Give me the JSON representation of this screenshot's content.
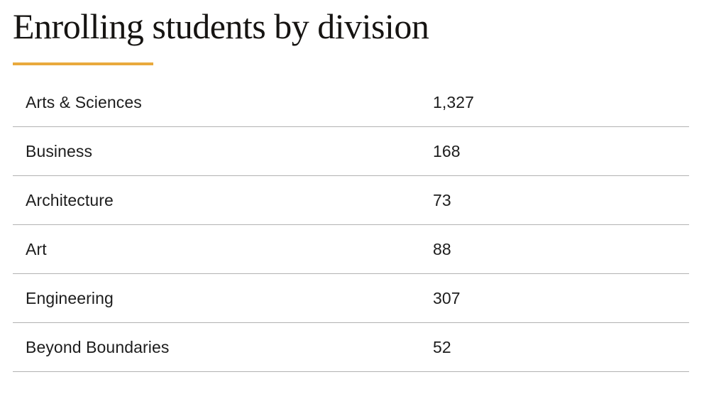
{
  "page": {
    "title": "Enrolling students by division",
    "accent_color": "#E9A93D",
    "divider_color": "#B2B2B2"
  },
  "table": {
    "rows": [
      {
        "label": "Arts & Sciences",
        "value": "1,327"
      },
      {
        "label": "Business",
        "value": "168"
      },
      {
        "label": "Architecture",
        "value": "73"
      },
      {
        "label": "Art",
        "value": "88"
      },
      {
        "label": "Engineering",
        "value": "307"
      },
      {
        "label": "Beyond Boundaries",
        "value": "52"
      }
    ]
  }
}
